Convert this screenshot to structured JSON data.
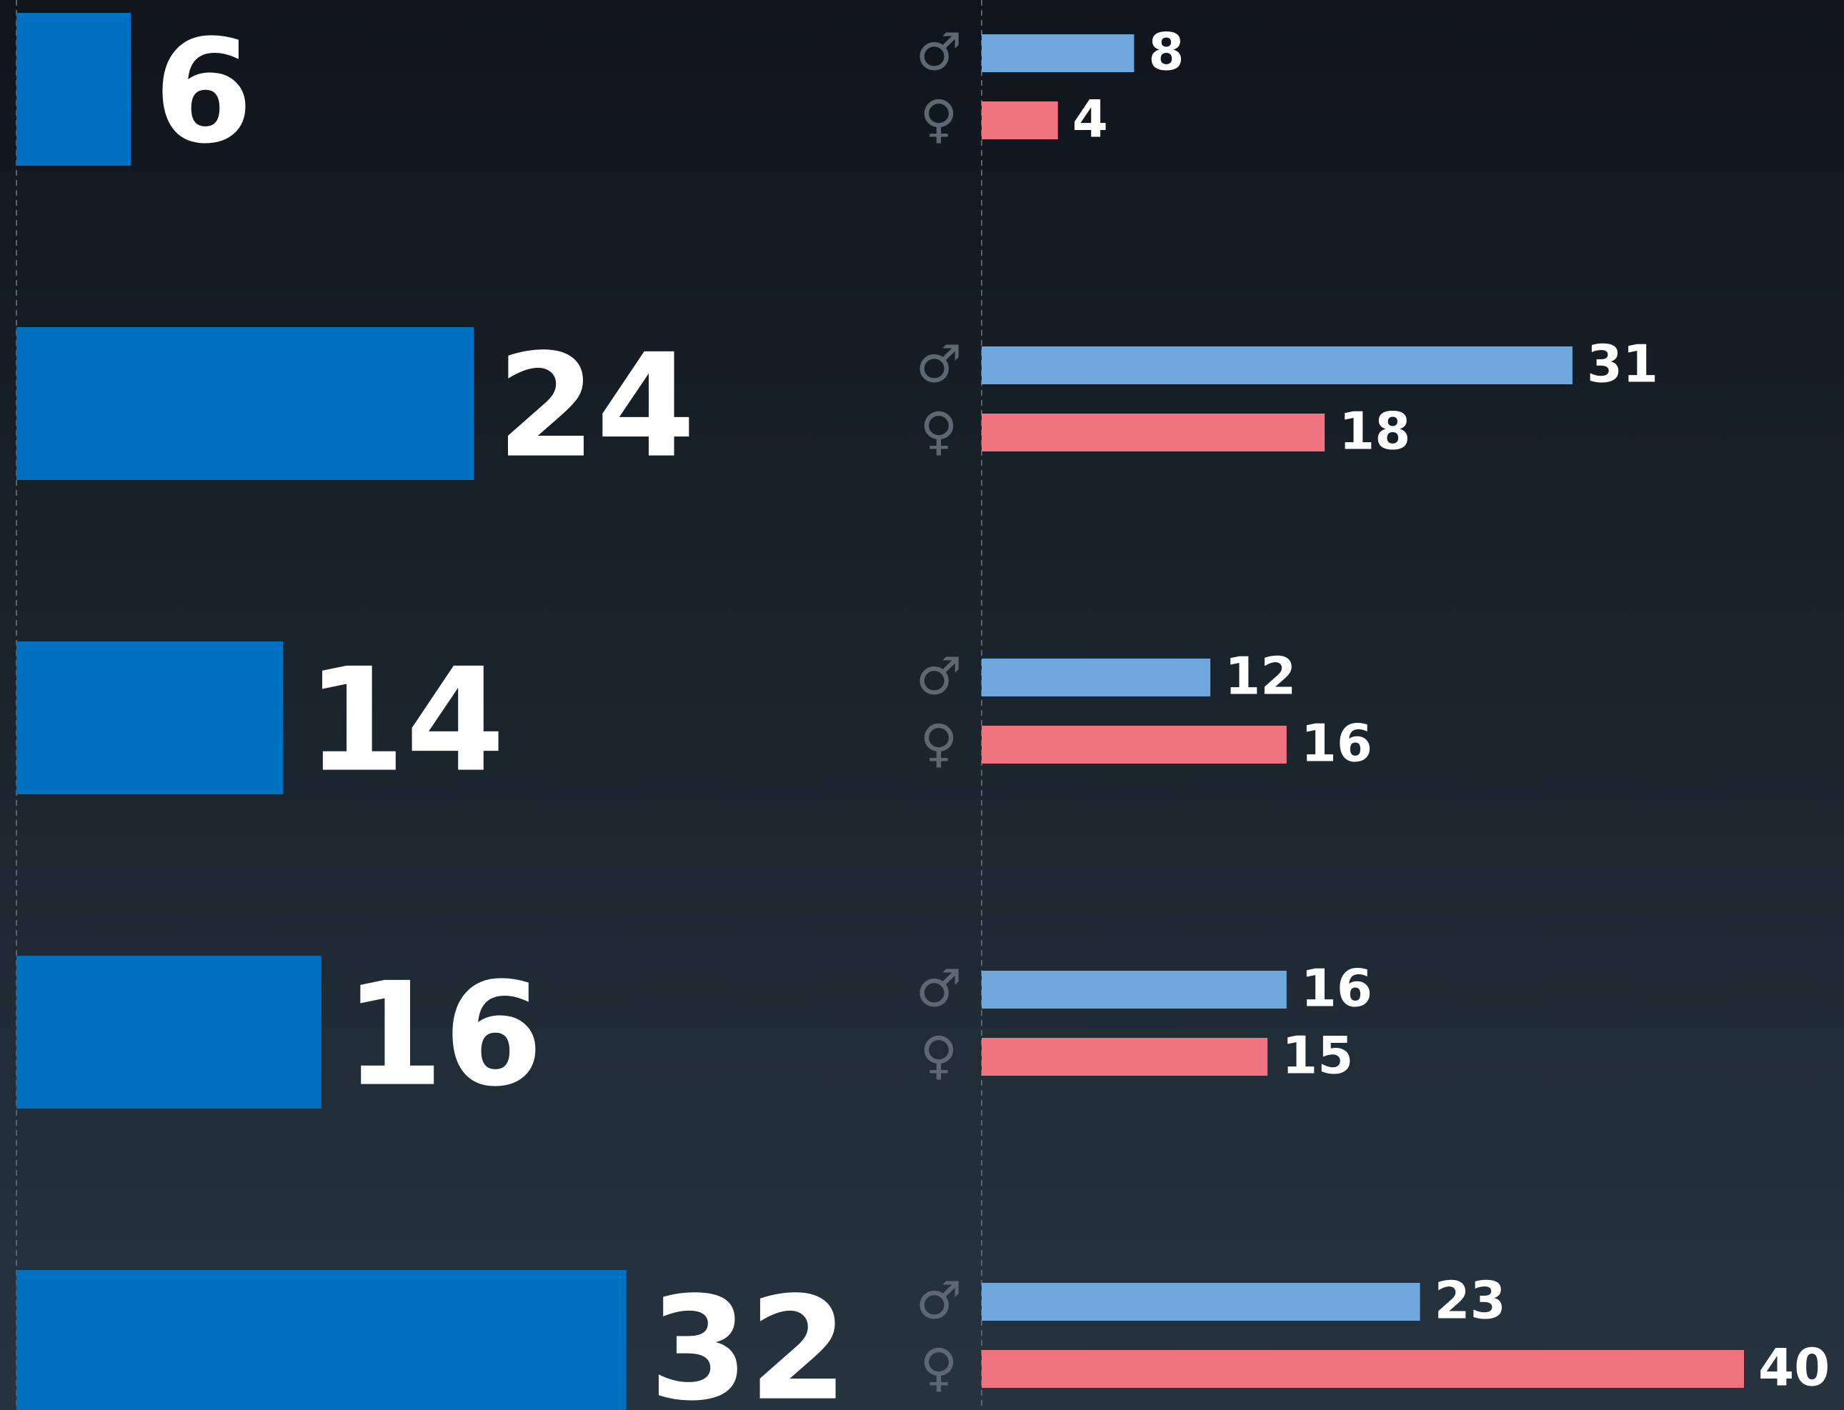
{
  "chart_data": [
    {
      "type": "bar",
      "orientation": "horizontal",
      "categories": [
        null,
        null,
        null,
        null,
        null
      ],
      "values": [
        6,
        24,
        14,
        16,
        32
      ],
      "color": "#0070c0"
    },
    {
      "type": "bar",
      "orientation": "horizontal",
      "categories": [
        null,
        null,
        null,
        null,
        null
      ],
      "series": [
        {
          "name": "♂",
          "color": "#6fa8dc",
          "values": [
            8,
            31,
            12,
            16,
            23
          ]
        },
        {
          "name": "♀",
          "color": "#f07480",
          "values": [
            4,
            18,
            16,
            15,
            40
          ]
        }
      ]
    }
  ]
}
